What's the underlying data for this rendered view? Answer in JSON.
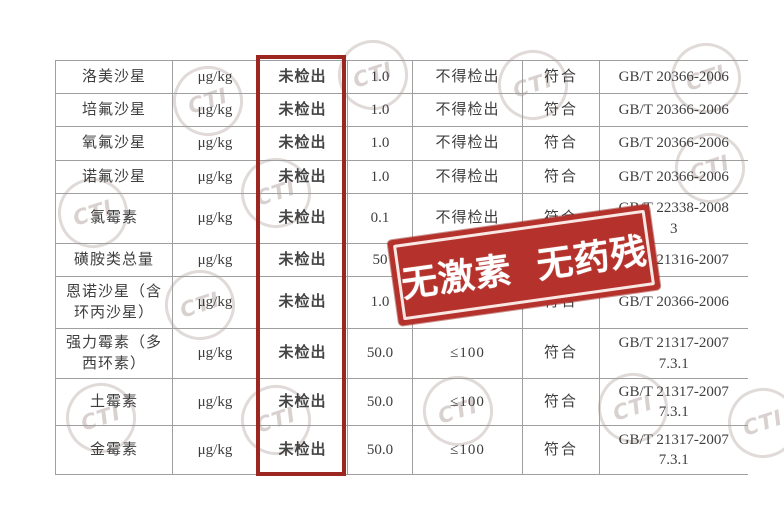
{
  "stamp": {
    "text": "无激素 无药残",
    "bg_color": "#b5322c",
    "text_color": "#ffffff"
  },
  "highlight": {
    "color": "#9c2620"
  },
  "watermark": {
    "label": "CTI",
    "color": "#baacA8"
  },
  "table": {
    "rows": [
      {
        "item": "洛美沙星",
        "unit": "μg/kg",
        "result": "未检出",
        "lod": "1.0",
        "limit": "不得检出",
        "conclusion": "符合",
        "method": [
          "GB/T 20366-2006"
        ]
      },
      {
        "item": "培氟沙星",
        "unit": "μg/kg",
        "result": "未检出",
        "lod": "1.0",
        "limit": "不得检出",
        "conclusion": "符合",
        "method": [
          "GB/T 20366-2006"
        ]
      },
      {
        "item": "氧氟沙星",
        "unit": "μg/kg",
        "result": "未检出",
        "lod": "1.0",
        "limit": "不得检出",
        "conclusion": "符合",
        "method": [
          "GB/T 20366-2006"
        ]
      },
      {
        "item": "诺氟沙星",
        "unit": "μg/kg",
        "result": "未检出",
        "lod": "1.0",
        "limit": "不得检出",
        "conclusion": "符合",
        "method": [
          "GB/T 20366-2006"
        ]
      },
      {
        "item": "氯霉素",
        "unit": "μg/kg",
        "result": "未检出",
        "lod": "0.1",
        "limit": "不得检出",
        "conclusion": "符合",
        "method": [
          "GB/T 22338-2008",
          "3"
        ]
      },
      {
        "item": "磺胺类总量",
        "unit": "μg/kg",
        "result": "未检出",
        "lod": "50",
        "limit": "",
        "conclusion": "",
        "method": [
          "GB/T 21316-2007"
        ]
      },
      {
        "item": "恩诺沙星（含环丙沙星）",
        "unit": "μg/kg",
        "result": "未检出",
        "lod": "1.0",
        "limit": "≤100",
        "conclusion": "符合",
        "method": [
          "GB/T 20366-2006"
        ]
      },
      {
        "item": "强力霉素（多西环素）",
        "unit": "μg/kg",
        "result": "未检出",
        "lod": "50.0",
        "limit": "≤100",
        "conclusion": "符合",
        "method": [
          "GB/T 21317-2007",
          "7.3.1"
        ]
      },
      {
        "item": "土霉素",
        "unit": "μg/kg",
        "result": "未检出",
        "lod": "50.0",
        "limit": "≤100",
        "conclusion": "符合",
        "method": [
          "GB/T 21317-2007",
          "7.3.1"
        ]
      },
      {
        "item": "金霉素",
        "unit": "μg/kg",
        "result": "未检出",
        "lod": "50.0",
        "limit": "≤100",
        "conclusion": "符合",
        "method": [
          "GB/T 21317-2007",
          "7.3.1"
        ]
      }
    ]
  }
}
